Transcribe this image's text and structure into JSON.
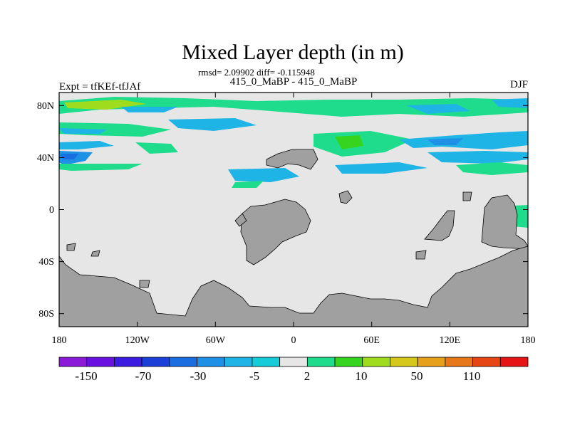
{
  "chart_data": {
    "type": "heatmap",
    "title": "Mixed Layer depth (in m)",
    "subtitle": "rmsd= 2.09902 diff= -0.115948",
    "center_label": "415_0_MaBP - 415_0_MaBP",
    "left_label": "Expt = tfKEf-tfJAf",
    "right_label": "DJF",
    "x_ticks": [
      "180",
      "120W",
      "60W",
      "0",
      "60E",
      "120E",
      "180"
    ],
    "y_ticks": [
      "80N",
      "40N",
      "0",
      "40S",
      "80S"
    ],
    "xlim": [
      -180,
      180
    ],
    "ylim": [
      -90,
      90
    ],
    "land_color": "#a0a0a0",
    "ocean_color": "#e6e6e6",
    "colorbar": {
      "colors": [
        "#8b1ad8",
        "#6a10e0",
        "#3b1ce0",
        "#1a40d8",
        "#1a6ee0",
        "#1e90e6",
        "#1fb4e6",
        "#15ccd8",
        "#e6e6e6",
        "#1edc8c",
        "#36d41e",
        "#a0dc1e",
        "#d6c81a",
        "#e6a01a",
        "#e6781a",
        "#e64614",
        "#e61414"
      ],
      "labels": [
        "-150",
        "-70",
        "-30",
        "-5",
        "2",
        "10",
        "50",
        "110"
      ]
    },
    "anomaly_bands": [
      {
        "lat": 84,
        "lon_from": -180,
        "lon_to": 180,
        "category": "positive"
      },
      {
        "lat": 75,
        "lon_from": -180,
        "lon_to": -100,
        "category": "negative"
      },
      {
        "lat": 55,
        "lon_from": -180,
        "lon_to": -110,
        "category": "negative"
      },
      {
        "lat": 40,
        "lon_from": -180,
        "lon_to": -150,
        "category": "negative"
      },
      {
        "lat": 50,
        "lon_from": 20,
        "lon_to": 100,
        "category": "positive"
      },
      {
        "lat": 45,
        "lon_from": 110,
        "lon_to": 180,
        "category": "negative"
      },
      {
        "lat": 20,
        "lon_from": -85,
        "lon_to": -20,
        "category": "negative"
      }
    ]
  }
}
